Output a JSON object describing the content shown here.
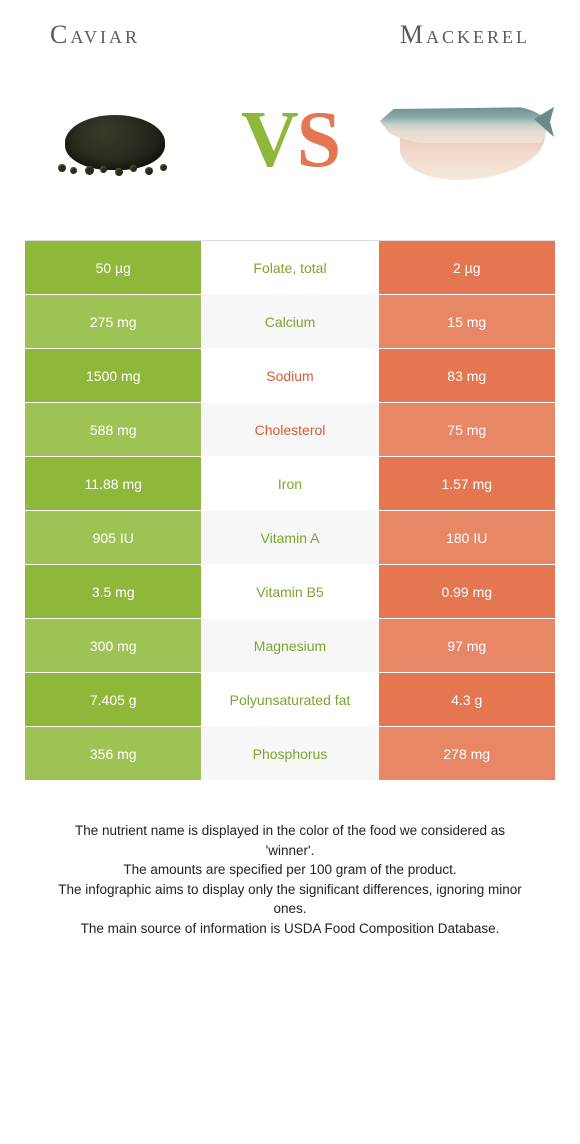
{
  "titles": {
    "left": "Caviar",
    "right": "Mackerel"
  },
  "vs": {
    "v": "V",
    "s": "S"
  },
  "colors": {
    "left_bg": "#8fb83b",
    "left_bg_alt": "#9fc254",
    "right_bg": "#e47651",
    "right_bg_alt": "#e88766",
    "left_text": "#ffffff",
    "right_text": "#ffffff",
    "mid_winner_left": "#7ba52e",
    "mid_winner_right": "#d85a36"
  },
  "rows": [
    {
      "nutrient": "Folate, total",
      "left": "50 µg",
      "right": "2 µg",
      "winner": "left"
    },
    {
      "nutrient": "Calcium",
      "left": "275 mg",
      "right": "15 mg",
      "winner": "left"
    },
    {
      "nutrient": "Sodium",
      "left": "1500 mg",
      "right": "83 mg",
      "winner": "right"
    },
    {
      "nutrient": "Cholesterol",
      "left": "588 mg",
      "right": "75 mg",
      "winner": "right"
    },
    {
      "nutrient": "Iron",
      "left": "11.88 mg",
      "right": "1.57 mg",
      "winner": "left"
    },
    {
      "nutrient": "Vitamin A",
      "left": "905 IU",
      "right": "180 IU",
      "winner": "left"
    },
    {
      "nutrient": "Vitamin B5",
      "left": "3.5 mg",
      "right": "0.99 mg",
      "winner": "left"
    },
    {
      "nutrient": "Magnesium",
      "left": "300 mg",
      "right": "97 mg",
      "winner": "left"
    },
    {
      "nutrient": "Polyunsaturated fat",
      "left": "7.405 g",
      "right": "4.3 g",
      "winner": "left"
    },
    {
      "nutrient": "Phosphorus",
      "left": "356 mg",
      "right": "278 mg",
      "winner": "left"
    }
  ],
  "footer": [
    "The nutrient name is displayed in the color of the food we considered as 'winner'.",
    "The amounts are specified per 100 gram of the product.",
    "The infographic aims to display only the significant differences, ignoring minor ones.",
    "The main source of information is USDA Food Composition Database."
  ]
}
